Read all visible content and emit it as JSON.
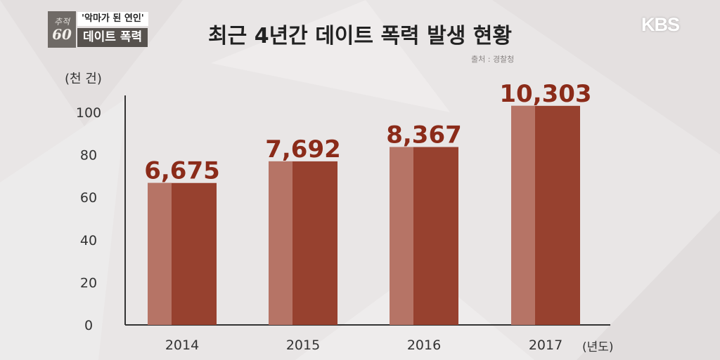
{
  "badge": {
    "program_logo_small": "추적",
    "program_logo_number": "60",
    "episode_quote": "'악마가 된 연인'",
    "topic": "데이트 폭력"
  },
  "broadcaster": "KBS",
  "source_note": "출처 : 경찰청",
  "colors": {
    "bar_main": "#97412f",
    "bar_light": "#b67466",
    "value_label": "#8b2b19",
    "axis": "#333333"
  },
  "chart_data": {
    "type": "bar",
    "title": "최근 4년간 데이트 폭력 발생 현황",
    "ylabel": "(천 건)",
    "xlabel": "(년도)",
    "categories": [
      "2014",
      "2015",
      "2016",
      "2017"
    ],
    "values": [
      6675,
      7692,
      8367,
      10303
    ],
    "value_labels": [
      "6,675",
      "7,692",
      "8,367",
      "10,303"
    ],
    "yticks": [
      "0",
      "20",
      "40",
      "60",
      "80",
      "100"
    ],
    "ylim": [
      0,
      100
    ],
    "grid": false,
    "legend": "none"
  }
}
